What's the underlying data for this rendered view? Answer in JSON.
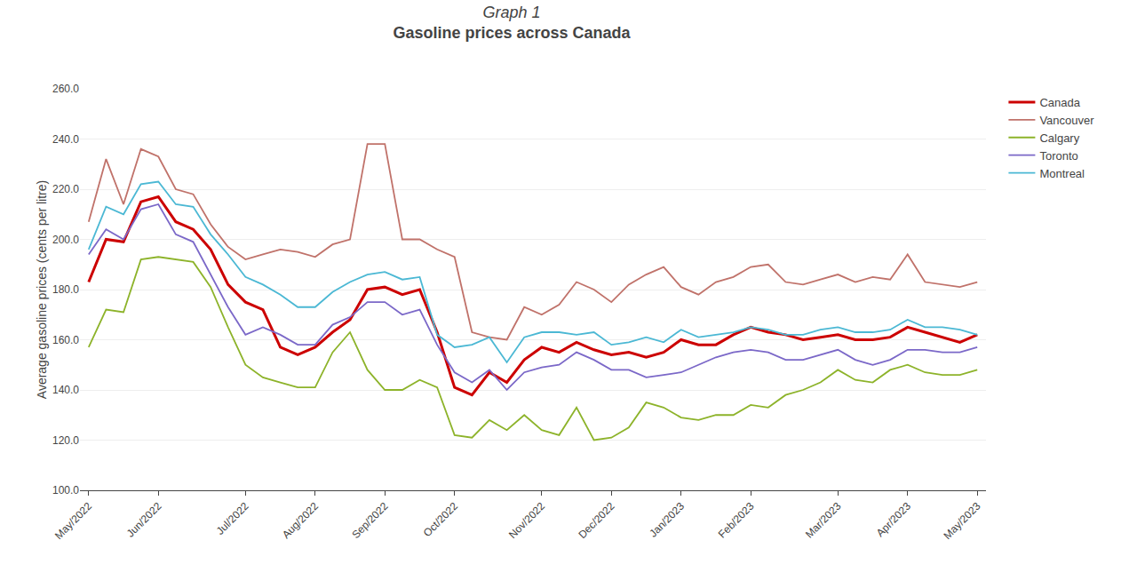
{
  "chart_data": {
    "type": "line",
    "title": "Graph 1",
    "subtitle": "Gasoline prices across Canada",
    "y_label": "Average gasoline prices (cents per litre)",
    "categories": [
      "May/2022",
      null,
      null,
      null,
      "Jun/2022",
      null,
      null,
      null,
      null,
      "Jul/2022",
      null,
      null,
      null,
      "Aug/2022",
      null,
      null,
      null,
      "Sep/2022",
      null,
      null,
      null,
      "Oct/2022",
      null,
      null,
      null,
      null,
      "Nov/2022",
      null,
      null,
      null,
      "Dec/2022",
      null,
      null,
      null,
      "Jan/2023",
      null,
      null,
      null,
      "Feb/2023",
      null,
      null,
      null,
      null,
      "Mar/2023",
      null,
      null,
      null,
      "Apr/2023",
      null,
      null,
      null,
      "May/2023"
    ],
    "series": [
      {
        "name": "Canada",
        "color": "#CC0000",
        "values": [
          183,
          200,
          199,
          215,
          217,
          207,
          204,
          196,
          182,
          175,
          172,
          157,
          154,
          157,
          163,
          168,
          180,
          181,
          178,
          180,
          163,
          141,
          138,
          147,
          143,
          152,
          157,
          155,
          159,
          156,
          154,
          155,
          153,
          155,
          160,
          158,
          158,
          162,
          165,
          163,
          162,
          160,
          161,
          162,
          160,
          160,
          161,
          165,
          163,
          161,
          159,
          162
        ]
      },
      {
        "name": "Vancouver",
        "color": "#C0726A",
        "values": [
          207,
          232,
          214,
          236,
          233,
          220,
          218,
          206,
          197,
          192,
          194,
          196,
          195,
          193,
          198,
          200,
          238,
          238,
          200,
          200,
          196,
          193,
          163,
          161,
          160,
          173,
          170,
          174,
          183,
          180,
          175,
          182,
          186,
          189,
          181,
          178,
          183,
          185,
          189,
          190,
          183,
          182,
          184,
          186,
          183,
          185,
          184,
          194,
          183,
          182,
          181,
          183
        ]
      },
      {
        "name": "Calgary",
        "color": "#8DB32A",
        "values": [
          157,
          172,
          171,
          192,
          193,
          192,
          191,
          181,
          165,
          150,
          145,
          143,
          141,
          141,
          155,
          163,
          148,
          140,
          140,
          144,
          141,
          122,
          121,
          128,
          124,
          130,
          124,
          122,
          133,
          120,
          121,
          125,
          135,
          133,
          129,
          128,
          130,
          130,
          134,
          133,
          138,
          140,
          143,
          148,
          144,
          143,
          148,
          150,
          147,
          146,
          146,
          148
        ]
      },
      {
        "name": "Toronto",
        "color": "#7B68C8",
        "values": [
          194,
          204,
          200,
          212,
          214,
          202,
          199,
          186,
          173,
          162,
          165,
          162,
          158,
          158,
          166,
          169,
          175,
          175,
          170,
          172,
          158,
          147,
          143,
          148,
          140,
          147,
          149,
          150,
          155,
          152,
          148,
          148,
          145,
          146,
          147,
          150,
          153,
          155,
          156,
          155,
          152,
          152,
          154,
          156,
          152,
          150,
          152,
          156,
          156,
          155,
          155,
          157
        ]
      },
      {
        "name": "Montreal",
        "color": "#4BB8D4",
        "values": [
          196,
          213,
          210,
          222,
          223,
          214,
          213,
          202,
          194,
          185,
          182,
          178,
          173,
          173,
          179,
          183,
          186,
          187,
          184,
          185,
          162,
          157,
          158,
          161,
          151,
          161,
          163,
          163,
          162,
          163,
          158,
          159,
          161,
          159,
          164,
          161,
          162,
          163,
          165,
          164,
          162,
          162,
          164,
          165,
          163,
          163,
          164,
          168,
          165,
          165,
          164,
          162
        ]
      }
    ],
    "ylim": [
      100.0,
      260.0
    ],
    "yticks": [
      {
        "value": 100,
        "label": "100.0"
      },
      {
        "value": 120,
        "label": "120.0"
      },
      {
        "value": 140,
        "label": "140.0"
      },
      {
        "value": 160,
        "label": "160.0"
      },
      {
        "value": 180,
        "label": "180.0"
      },
      {
        "value": 200,
        "label": "200.0"
      },
      {
        "value": 220,
        "label": "220.0"
      },
      {
        "value": 240,
        "label": "240.0"
      },
      {
        "value": 260,
        "label": "260.0"
      }
    ],
    "grid": true,
    "legend": "right"
  }
}
